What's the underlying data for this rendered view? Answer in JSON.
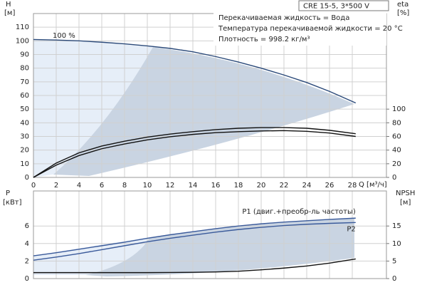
{
  "chart_data": [
    {
      "type": "line",
      "ylabel": "H",
      "yunit": "[м]",
      "y2label": "eta",
      "y2unit": "[%]",
      "xlabel": "Q [м³/ч]",
      "model": "CRE 15-5, 3*500 V",
      "notes": [
        "Перекачиваемая жидкость = Вода",
        "Температура перекачиваемой жидкости = 20 °C",
        "Плотность = 998.2 кг/м³"
      ],
      "annotation": "100 %",
      "xlim": [
        0,
        31
      ],
      "xticks": [
        0,
        2,
        4,
        6,
        8,
        10,
        12,
        14,
        16,
        18,
        20,
        22,
        24,
        26,
        28
      ],
      "ylim": [
        0,
        120
      ],
      "yticks": [
        0,
        10,
        20,
        30,
        40,
        50,
        60,
        70,
        80,
        90,
        100,
        110
      ],
      "y2lim": [
        0,
        240
      ],
      "y2ticks": [
        0,
        20,
        40,
        60,
        80,
        100
      ],
      "grid": true,
      "x": [
        0,
        2,
        4,
        6,
        8,
        10,
        12,
        14,
        16,
        18,
        20,
        22,
        24,
        26,
        28.3
      ],
      "series": [
        {
          "color": "#2b4a7a",
          "values": [
            101,
            100.6,
            100,
            99,
            97.8,
            96.3,
            94.5,
            92,
            88.5,
            84.5,
            80,
            75,
            69.5,
            63,
            54.5
          ]
        },
        {
          "color": "#111111",
          "axis": "y2",
          "values": [
            0,
            21,
            36,
            46,
            53,
            59,
            63.5,
            67,
            70,
            72,
            73,
            73,
            72,
            69,
            64
          ]
        },
        {
          "color": "#111111",
          "axis": "y2",
          "values": [
            0,
            18,
            32,
            42,
            49,
            55,
            59.5,
            63,
            65.5,
            67,
            68,
            68.5,
            67.5,
            65,
            60
          ]
        }
      ]
    },
    {
      "type": "line",
      "ylabel": "P",
      "yunit": "[кВт]",
      "y2label": "NPSH",
      "y2unit": "[м]",
      "ylim": [
        0,
        10
      ],
      "yticks": [
        0,
        2,
        4,
        6
      ],
      "y2lim": [
        0,
        25
      ],
      "y2ticks": [
        0,
        5,
        10,
        15
      ],
      "grid": true,
      "x": [
        0,
        2,
        4,
        6,
        8,
        10,
        12,
        14,
        16,
        18,
        20,
        22,
        24,
        26,
        28.3
      ],
      "series": [
        {
          "name": "P1 (двиг.+преобр-ль частоты)",
          "color": "#3a5a9a",
          "values": [
            2.6,
            2.95,
            3.35,
            3.75,
            4.15,
            4.6,
            5.0,
            5.35,
            5.7,
            6.0,
            6.25,
            6.45,
            6.6,
            6.75,
            6.9
          ]
        },
        {
          "name": "P2",
          "color": "#3a5a9a",
          "values": [
            2.1,
            2.45,
            2.85,
            3.3,
            3.75,
            4.2,
            4.6,
            4.95,
            5.3,
            5.6,
            5.85,
            6.05,
            6.2,
            6.3,
            6.4
          ]
        },
        {
          "color": "#111111",
          "axis": "y2",
          "values": [
            1.7,
            1.7,
            1.7,
            1.7,
            1.7,
            1.7,
            1.75,
            1.8,
            1.9,
            2.1,
            2.5,
            3.0,
            3.6,
            4.4,
            5.6
          ]
        }
      ]
    }
  ]
}
